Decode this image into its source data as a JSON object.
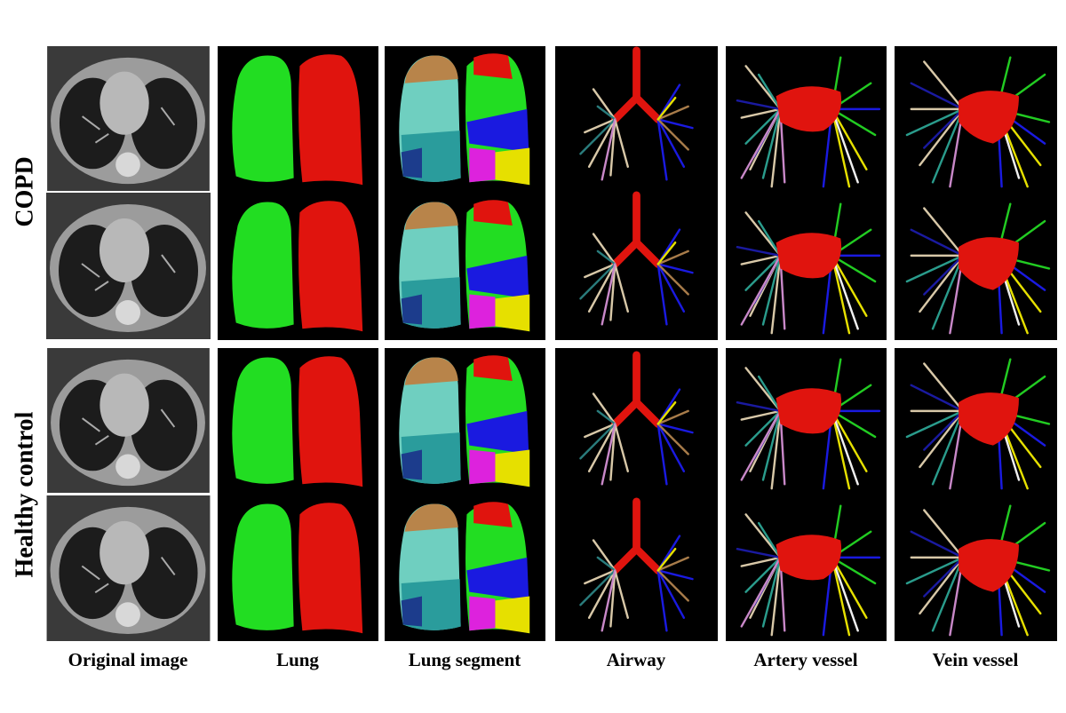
{
  "row_labels": [
    "COPD",
    "Healthy control"
  ],
  "column_labels": [
    "Original image",
    "Lung",
    "Lung segment",
    "Airway",
    "Artery vessel",
    "Vein vessel"
  ]
}
